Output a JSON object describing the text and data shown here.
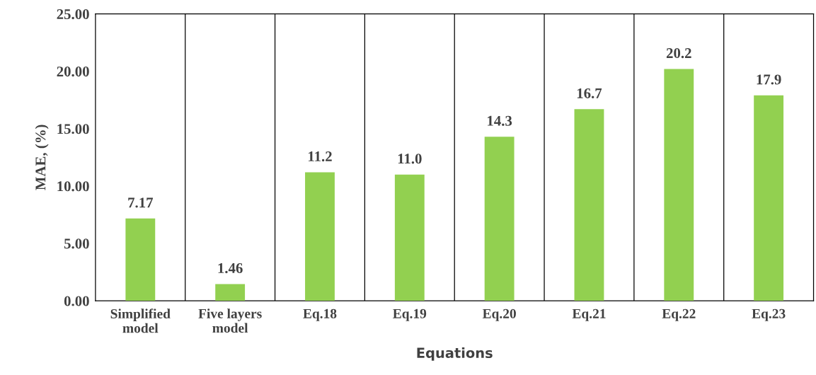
{
  "chart_data": {
    "type": "bar",
    "xlabel": "Equations",
    "ylabel": "MAE, (%)",
    "categories": [
      "Simplified\nmodel",
      "Five layers\nmodel",
      "Eq.18",
      "Eq.19",
      "Eq.20",
      "Eq.21",
      "Eq.22",
      "Eq.23"
    ],
    "values": [
      7.17,
      1.46,
      11.2,
      11.0,
      14.3,
      16.7,
      20.2,
      17.9
    ],
    "value_labels": [
      "7.17",
      "1.46",
      "11.2",
      "11.0",
      "14.3",
      "16.7",
      "20.2",
      "17.9"
    ],
    "color": "#92d050",
    "ylim": [
      0,
      25
    ],
    "yticks": [
      {
        "value": 0,
        "label": "0.00"
      },
      {
        "value": 5,
        "label": "5.00"
      },
      {
        "value": 10,
        "label": "10.00"
      },
      {
        "value": 15,
        "label": "15.00"
      },
      {
        "value": 20,
        "label": "20.00"
      },
      {
        "value": 25,
        "label": "25.00"
      }
    ],
    "grid": "x"
  }
}
